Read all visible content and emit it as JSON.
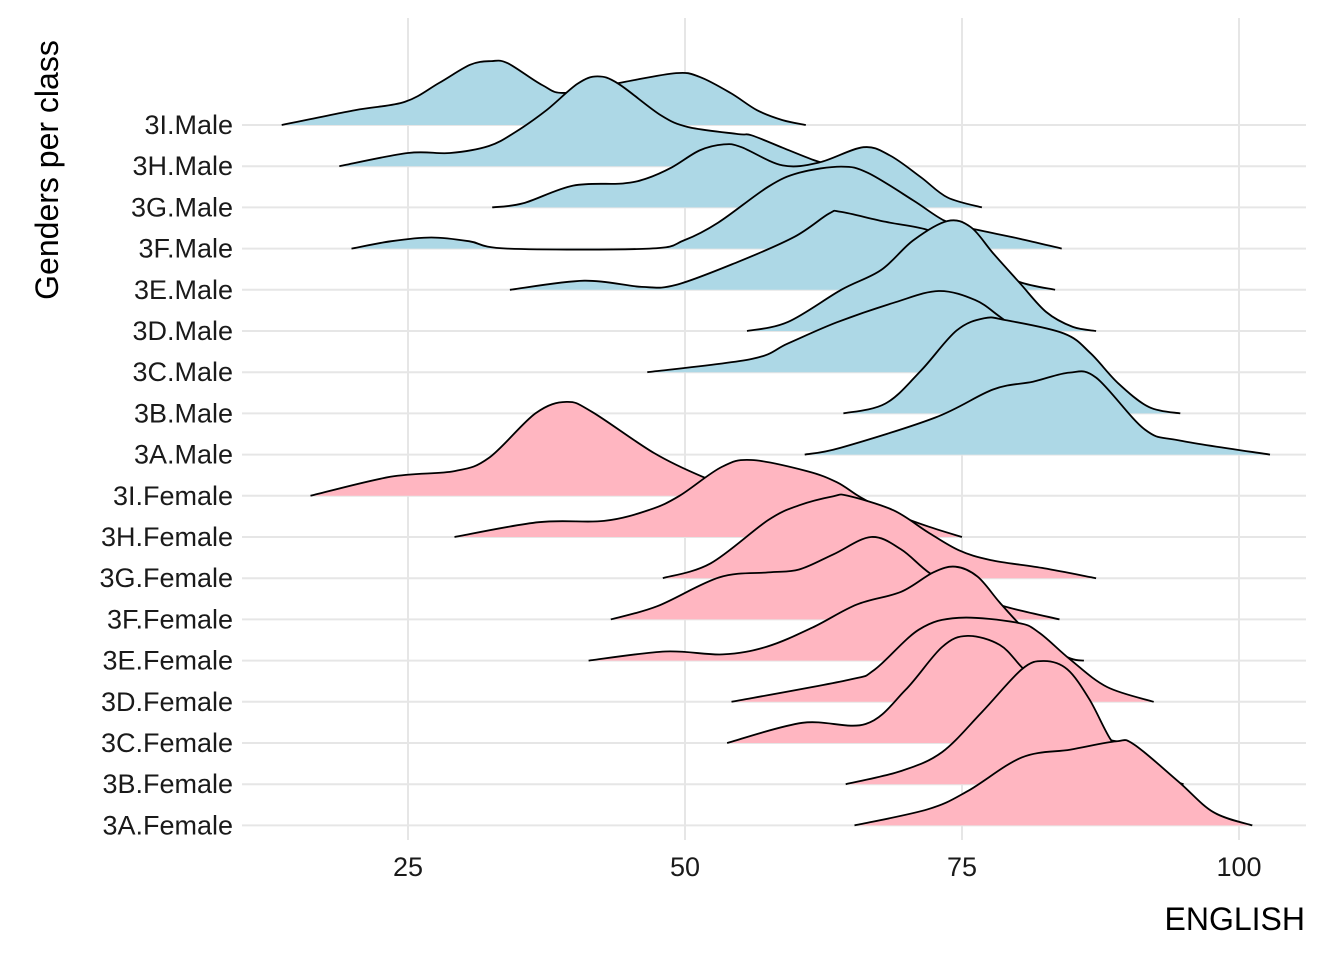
{
  "chart_data": {
    "type": "ridgeline",
    "title": "",
    "xlabel": "ENGLISH",
    "ylabel": "Genders per class",
    "xlim": [
      0,
      105
    ],
    "x_ticks": [
      25,
      50,
      75,
      100
    ],
    "x_tick_labels": [
      "25",
      "50",
      "75",
      "100"
    ],
    "grid": true,
    "colors": {
      "Male": "#ADD8E6",
      "Female": "#FFB6C1",
      "outline": "#000000",
      "grid": "#E6E6E6"
    },
    "height_unit": "row spacing",
    "series": [
      {
        "name": "3I.Male",
        "group": "Male",
        "points": [
          [
            13.6,
            0
          ],
          [
            20.2,
            0.36
          ],
          [
            24.7,
            0.56
          ],
          [
            27.8,
            1.02
          ],
          [
            30.6,
            1.46
          ],
          [
            32.5,
            1.55
          ],
          [
            34.0,
            1.5
          ],
          [
            37.1,
            0.97
          ],
          [
            39.2,
            0.78
          ],
          [
            44.4,
            1.04
          ],
          [
            49.2,
            1.26
          ],
          [
            51.3,
            1.17
          ],
          [
            54.1,
            0.78
          ],
          [
            56.5,
            0.36
          ],
          [
            58.8,
            0.12
          ],
          [
            60.9,
            0
          ]
        ]
      },
      {
        "name": "3H.Male",
        "group": "Male",
        "points": [
          [
            18.8,
            0
          ],
          [
            25.0,
            0.32
          ],
          [
            28.8,
            0.32
          ],
          [
            32.3,
            0.49
          ],
          [
            34.7,
            0.83
          ],
          [
            37.5,
            1.36
          ],
          [
            40.3,
            2.0
          ],
          [
            42.1,
            2.18
          ],
          [
            44.0,
            2.0
          ],
          [
            47.8,
            1.24
          ],
          [
            50.3,
            0.95
          ],
          [
            54.8,
            0.78
          ],
          [
            56.0,
            0.75
          ],
          [
            58.8,
            0.45
          ],
          [
            61.6,
            0.15
          ],
          [
            63.5,
            0
          ]
        ]
      },
      {
        "name": "3G.Male",
        "group": "Male",
        "points": [
          [
            32.6,
            0
          ],
          [
            35.4,
            0.1
          ],
          [
            39.9,
            0.53
          ],
          [
            44.4,
            0.58
          ],
          [
            46.5,
            0.7
          ],
          [
            48.8,
            0.97
          ],
          [
            51.3,
            1.38
          ],
          [
            53.5,
            1.53
          ],
          [
            55.1,
            1.46
          ],
          [
            58.8,
            1.02
          ],
          [
            62.1,
            1.09
          ],
          [
            66.1,
            1.46
          ],
          [
            68.5,
            1.26
          ],
          [
            71.3,
            0.73
          ],
          [
            73.7,
            0.24
          ],
          [
            76.8,
            0
          ]
        ]
      },
      {
        "name": "3F.Male",
        "group": "Male",
        "points": [
          [
            19.9,
            0
          ],
          [
            23.5,
            0.18
          ],
          [
            27.1,
            0.27
          ],
          [
            30.5,
            0.18
          ],
          [
            34.0,
            0
          ],
          [
            46.8,
            0
          ],
          [
            49.9,
            0.2
          ],
          [
            53.0,
            0.63
          ],
          [
            57.5,
            1.5
          ],
          [
            60.3,
            1.84
          ],
          [
            64.1,
            1.99
          ],
          [
            66.5,
            1.84
          ],
          [
            70.6,
            1.17
          ],
          [
            73.4,
            0.68
          ],
          [
            75.8,
            0.49
          ],
          [
            80.2,
            0.24
          ],
          [
            84.0,
            0
          ]
        ]
      },
      {
        "name": "3E.Male",
        "group": "Male",
        "points": [
          [
            34.2,
            0
          ],
          [
            40.9,
            0.22
          ],
          [
            46.1,
            0.07
          ],
          [
            49.2,
            0.12
          ],
          [
            54.8,
            0.68
          ],
          [
            59.9,
            1.29
          ],
          [
            63.0,
            1.85
          ],
          [
            64.1,
            1.89
          ],
          [
            68.1,
            1.65
          ],
          [
            71.8,
            1.46
          ],
          [
            75.0,
            1.1
          ],
          [
            77.5,
            0.6
          ],
          [
            80.2,
            0.19
          ],
          [
            83.4,
            0
          ]
        ]
      },
      {
        "name": "3D.Male",
        "group": "Male",
        "points": [
          [
            55.6,
            0
          ],
          [
            59.3,
            0.22
          ],
          [
            64.1,
            1.0
          ],
          [
            67.7,
            1.48
          ],
          [
            70.6,
            2.2
          ],
          [
            73.7,
            2.67
          ],
          [
            75.8,
            2.52
          ],
          [
            77.8,
            1.89
          ],
          [
            80.2,
            1.17
          ],
          [
            82.6,
            0.46
          ],
          [
            85.0,
            0.1
          ],
          [
            87.1,
            0
          ]
        ]
      },
      {
        "name": "3C.Male",
        "group": "Male",
        "points": [
          [
            46.6,
            0
          ],
          [
            56.0,
            0.32
          ],
          [
            59.3,
            0.7
          ],
          [
            63.7,
            1.21
          ],
          [
            69.0,
            1.7
          ],
          [
            72.9,
            1.97
          ],
          [
            76.2,
            1.75
          ],
          [
            78.6,
            1.31
          ],
          [
            82.0,
            0.65
          ],
          [
            85.6,
            0.17
          ],
          [
            87.5,
            0
          ]
        ]
      },
      {
        "name": "3B.Male",
        "group": "Male",
        "points": [
          [
            64.3,
            0
          ],
          [
            68.1,
            0.24
          ],
          [
            71.3,
            1.04
          ],
          [
            74.5,
            2.01
          ],
          [
            77.0,
            2.31
          ],
          [
            79.0,
            2.26
          ],
          [
            84.2,
            1.94
          ],
          [
            86.6,
            1.46
          ],
          [
            89.1,
            0.73
          ],
          [
            91.9,
            0.15
          ],
          [
            94.7,
            0
          ]
        ]
      },
      {
        "name": "3A.Male",
        "group": "Male",
        "points": [
          [
            60.8,
            0
          ],
          [
            64.1,
            0.17
          ],
          [
            72.6,
            0.9
          ],
          [
            77.8,
            1.58
          ],
          [
            81.4,
            1.77
          ],
          [
            84.7,
            1.99
          ],
          [
            87.1,
            1.87
          ],
          [
            91.5,
            0.61
          ],
          [
            94.7,
            0.34
          ],
          [
            102.8,
            0
          ]
        ]
      },
      {
        "name": "3I.Female",
        "group": "Female",
        "points": [
          [
            16.2,
            0
          ],
          [
            23.4,
            0.46
          ],
          [
            29.2,
            0.6
          ],
          [
            32.3,
            0.92
          ],
          [
            36.5,
            2.0
          ],
          [
            39.3,
            2.28
          ],
          [
            41.6,
            2.04
          ],
          [
            47.2,
            1.04
          ],
          [
            51.6,
            0.46
          ],
          [
            55.0,
            0.15
          ],
          [
            58.0,
            0
          ]
        ]
      },
      {
        "name": "3H.Female",
        "group": "Female",
        "points": [
          [
            29.2,
            0
          ],
          [
            36.8,
            0.36
          ],
          [
            42.7,
            0.39
          ],
          [
            46.8,
            0.66
          ],
          [
            49.5,
            1.0
          ],
          [
            53.3,
            1.7
          ],
          [
            56.0,
            1.87
          ],
          [
            61.0,
            1.6
          ],
          [
            63.7,
            1.33
          ],
          [
            65.8,
            0.97
          ],
          [
            68.5,
            0.6
          ],
          [
            72.0,
            0.25
          ],
          [
            75.0,
            0
          ]
        ]
      },
      {
        "name": "3G.Female",
        "group": "Female",
        "points": [
          [
            48.0,
            0
          ],
          [
            52.3,
            0.36
          ],
          [
            57.5,
            1.41
          ],
          [
            60.3,
            1.77
          ],
          [
            63.4,
            1.99
          ],
          [
            64.7,
            2.0
          ],
          [
            68.8,
            1.65
          ],
          [
            71.9,
            1.12
          ],
          [
            74.7,
            0.68
          ],
          [
            77.6,
            0.44
          ],
          [
            82.4,
            0.24
          ],
          [
            87.1,
            0
          ]
        ]
      },
      {
        "name": "3F.Female",
        "group": "Female",
        "points": [
          [
            43.3,
            0
          ],
          [
            47.5,
            0.32
          ],
          [
            53.1,
            1.02
          ],
          [
            57.5,
            1.14
          ],
          [
            60.3,
            1.21
          ],
          [
            63.4,
            1.58
          ],
          [
            66.8,
            2.0
          ],
          [
            69.5,
            1.7
          ],
          [
            72.1,
            1.12
          ],
          [
            75.5,
            0.6
          ],
          [
            79.2,
            0.29
          ],
          [
            83.8,
            0
          ]
        ]
      },
      {
        "name": "3E.Female",
        "group": "Female",
        "points": [
          [
            41.3,
            0
          ],
          [
            48.2,
            0.22
          ],
          [
            53.4,
            0.15
          ],
          [
            57.4,
            0.34
          ],
          [
            61.5,
            0.8
          ],
          [
            65.5,
            1.36
          ],
          [
            69.5,
            1.67
          ],
          [
            72.4,
            2.14
          ],
          [
            74.4,
            2.28
          ],
          [
            76.4,
            2.04
          ],
          [
            78.4,
            1.41
          ],
          [
            80.4,
            0.83
          ],
          [
            82.6,
            0.35
          ],
          [
            84.8,
            0.05
          ],
          [
            86.0,
            0
          ]
        ]
      },
      {
        "name": "3D.Female",
        "group": "Female",
        "points": [
          [
            54.2,
            0
          ],
          [
            64.7,
            0.53
          ],
          [
            67.1,
            0.78
          ],
          [
            71.1,
            1.75
          ],
          [
            74.7,
            2.04
          ],
          [
            80.0,
            1.92
          ],
          [
            82.0,
            1.67
          ],
          [
            84.8,
            1.02
          ],
          [
            88.1,
            0.36
          ],
          [
            92.3,
            0
          ]
        ]
      },
      {
        "name": "3C.Female",
        "group": "Female",
        "points": [
          [
            53.8,
            0
          ],
          [
            60.6,
            0.49
          ],
          [
            66.3,
            0.46
          ],
          [
            69.9,
            1.29
          ],
          [
            73.2,
            2.33
          ],
          [
            75.5,
            2.6
          ],
          [
            78.4,
            2.38
          ],
          [
            80.4,
            1.84
          ],
          [
            83.0,
            1.1
          ],
          [
            86.0,
            0.4
          ],
          [
            88.0,
            0.1
          ],
          [
            90.0,
            0
          ]
        ]
      },
      {
        "name": "3B.Female",
        "group": "Female",
        "points": [
          [
            64.5,
            0
          ],
          [
            69.5,
            0.32
          ],
          [
            73.2,
            0.78
          ],
          [
            76.8,
            1.75
          ],
          [
            80.4,
            2.79
          ],
          [
            82.4,
            2.99
          ],
          [
            84.5,
            2.79
          ],
          [
            86.5,
            2.06
          ],
          [
            88.4,
            1.09
          ],
          [
            90.0,
            0.6
          ],
          [
            92.0,
            0.25
          ],
          [
            95.0,
            0
          ]
        ]
      },
      {
        "name": "3A.Female",
        "group": "Female",
        "points": [
          [
            65.3,
            0
          ],
          [
            71.9,
            0.39
          ],
          [
            75.5,
            0.83
          ],
          [
            80.4,
            1.65
          ],
          [
            84.8,
            1.84
          ],
          [
            88.9,
            2.04
          ],
          [
            90.5,
            1.97
          ],
          [
            94.5,
            1.07
          ],
          [
            97.7,
            0.32
          ],
          [
            101.2,
            0
          ]
        ]
      }
    ]
  }
}
